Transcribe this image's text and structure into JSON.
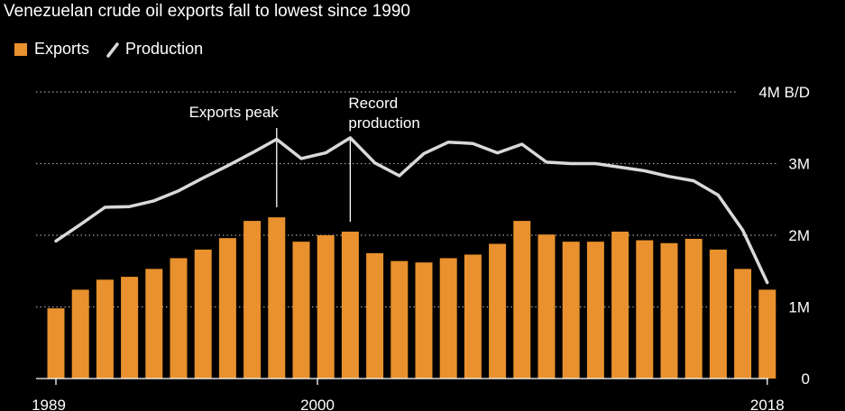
{
  "title": "Venezuelan crude oil exports fall to lowest since 1990",
  "legend": {
    "exports_label": "Exports",
    "production_label": "Production"
  },
  "colors": {
    "exports": "#e8912e",
    "production": "#d9d9d9",
    "background": "#000000"
  },
  "chart_data": {
    "type": "bar",
    "title": "Venezuelan crude oil exports fall to lowest since 1990",
    "unit_label": "4M B/D",
    "ylim": [
      0,
      4
    ],
    "yticks": [
      {
        "value": 0,
        "label": "0"
      },
      {
        "value": 1,
        "label": "1M"
      },
      {
        "value": 2,
        "label": "2M"
      },
      {
        "value": 3,
        "label": "3M"
      },
      {
        "value": 4,
        "label": "4M B/D"
      }
    ],
    "xticks": [
      {
        "year": 1989,
        "label": "1989"
      },
      {
        "year": 2000,
        "label": "2000"
      },
      {
        "year": 2018,
        "label": "2018"
      }
    ],
    "grid": true,
    "legend_position": "top-left",
    "years": [
      1989,
      1990,
      1991,
      1992,
      1993,
      1994,
      1995,
      1996,
      1997,
      1998,
      1999,
      2000,
      2001,
      2002,
      2003,
      2004,
      2005,
      2006,
      2007,
      2008,
      2009,
      2010,
      2011,
      2012,
      2013,
      2014,
      2015,
      2016,
      2017,
      2018
    ],
    "series": [
      {
        "name": "Exports",
        "type": "bar",
        "values": [
          0.98,
          1.24,
          1.38,
          1.42,
          1.53,
          1.68,
          1.8,
          1.96,
          2.2,
          2.25,
          1.91,
          2.0,
          2.05,
          1.75,
          1.64,
          1.62,
          1.68,
          1.73,
          1.88,
          2.2,
          2.01,
          1.91,
          1.91,
          2.05,
          1.93,
          1.89,
          1.95,
          1.8,
          1.53,
          1.24
        ]
      },
      {
        "name": "Production",
        "type": "line",
        "values": [
          1.92,
          2.15,
          2.39,
          2.4,
          2.48,
          2.62,
          2.8,
          2.97,
          3.15,
          3.34,
          3.07,
          3.15,
          3.36,
          3.01,
          2.83,
          3.14,
          3.3,
          3.28,
          3.15,
          3.27,
          3.02,
          3.0,
          3.0,
          2.95,
          2.9,
          2.82,
          2.76,
          2.56,
          2.07,
          1.34
        ]
      }
    ],
    "annotations": [
      {
        "year": 1998,
        "lines": [
          "Exports peak"
        ]
      },
      {
        "year": 2001,
        "lines": [
          "Record",
          "production"
        ]
      }
    ]
  }
}
